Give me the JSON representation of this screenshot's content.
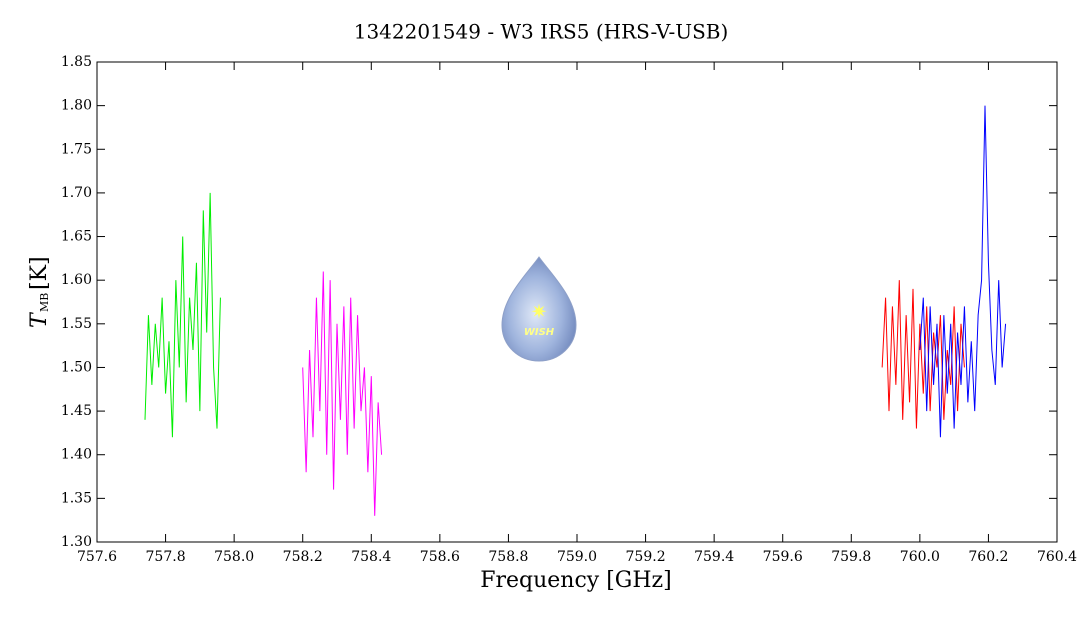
{
  "chart_data": {
    "type": "line",
    "title": "1342201549 - W3 IRS5 (HRS-V-USB)",
    "x_label": "Frequency [GHz]",
    "y_label": "T",
    "y_label_sub": "MB",
    "y_label_unit": "[K]",
    "logo_text": "WISH",
    "xlim": [
      757.6,
      760.4
    ],
    "ylim": [
      1.3,
      1.85
    ],
    "xticks": [
      757.6,
      757.8,
      {
        "value": 758,
        "label": "758.0"
      },
      758.2,
      758.4,
      758.6,
      758.8,
      {
        "value": 759,
        "label": "759.0"
      },
      759.2,
      759.4,
      759.6,
      759.8,
      {
        "value": 760,
        "label": "760.0"
      },
      760.2,
      760.4
    ],
    "yticks": [
      {
        "value": 1.3,
        "label": "1.30"
      },
      1.35,
      {
        "value": 1.4,
        "label": "1.40"
      },
      1.45,
      {
        "value": 1.5,
        "label": "1.50"
      },
      1.55,
      {
        "value": 1.6,
        "label": "1.60"
      },
      1.65,
      {
        "value": 1.7,
        "label": "1.70"
      },
      1.75,
      {
        "value": 1.8,
        "label": "1.80"
      },
      1.85
    ],
    "series": [
      {
        "color": "#00ee00",
        "x": [
          757.74,
          757.75,
          757.76,
          757.77,
          757.78,
          757.79,
          757.8,
          757.81,
          757.82,
          757.83,
          757.84,
          757.85,
          757.86,
          757.87,
          757.88,
          757.89,
          757.9,
          757.91,
          757.92,
          757.93,
          757.94,
          757.95,
          757.96
        ],
        "values": [
          1.44,
          1.56,
          1.48,
          1.55,
          1.5,
          1.58,
          1.47,
          1.53,
          1.42,
          1.6,
          1.5,
          1.65,
          1.46,
          1.58,
          1.52,
          1.62,
          1.45,
          1.68,
          1.54,
          1.7,
          1.5,
          1.43,
          1.58
        ]
      },
      {
        "color": "#ff00ff",
        "x": [
          758.2,
          758.21,
          758.22,
          758.23,
          758.24,
          758.25,
          758.26,
          758.27,
          758.28,
          758.29,
          758.3,
          758.31,
          758.32,
          758.33,
          758.34,
          758.35,
          758.36,
          758.37,
          758.38,
          758.39,
          758.4,
          758.41,
          758.42,
          758.43
        ],
        "values": [
          1.5,
          1.38,
          1.52,
          1.42,
          1.58,
          1.45,
          1.61,
          1.4,
          1.6,
          1.36,
          1.55,
          1.44,
          1.57,
          1.4,
          1.58,
          1.43,
          1.56,
          1.45,
          1.5,
          1.38,
          1.49,
          1.33,
          1.46,
          1.4
        ]
      },
      {
        "color": "#ff0000",
        "x": [
          759.89,
          759.9,
          759.91,
          759.92,
          759.93,
          759.94,
          759.95,
          759.96,
          759.97,
          759.98,
          759.99,
          760.0,
          760.01,
          760.02,
          760.03,
          760.04,
          760.05,
          760.06,
          760.07,
          760.08,
          760.09,
          760.1,
          760.11,
          760.12,
          760.13
        ],
        "values": [
          1.5,
          1.58,
          1.45,
          1.57,
          1.48,
          1.6,
          1.44,
          1.56,
          1.46,
          1.59,
          1.43,
          1.55,
          1.47,
          1.57,
          1.45,
          1.54,
          1.5,
          1.56,
          1.44,
          1.52,
          1.48,
          1.57,
          1.45,
          1.55,
          1.5
        ]
      },
      {
        "color": "#0000ff",
        "x": [
          760.0,
          760.01,
          760.02,
          760.03,
          760.04,
          760.05,
          760.06,
          760.07,
          760.08,
          760.09,
          760.1,
          760.11,
          760.12,
          760.13,
          760.14,
          760.15,
          760.16,
          760.17,
          760.18,
          760.19,
          760.2,
          760.21,
          760.22,
          760.23,
          760.24,
          760.25
        ],
        "values": [
          1.52,
          1.58,
          1.45,
          1.57,
          1.48,
          1.55,
          1.42,
          1.56,
          1.47,
          1.55,
          1.43,
          1.54,
          1.48,
          1.57,
          1.46,
          1.53,
          1.45,
          1.56,
          1.6,
          1.8,
          1.62,
          1.52,
          1.48,
          1.6,
          1.5,
          1.55
        ]
      }
    ]
  }
}
